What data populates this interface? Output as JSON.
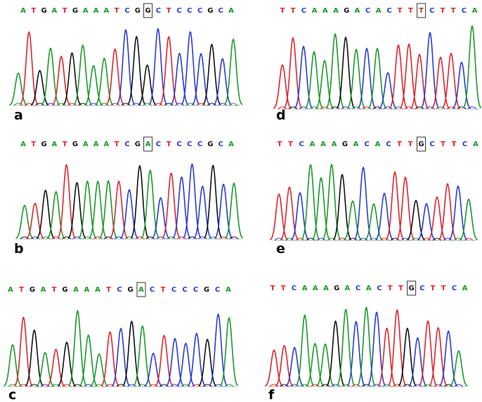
{
  "panels": [
    {
      "label": "a",
      "bases": [
        "A",
        "T",
        "G",
        "A",
        "T",
        "G",
        "A",
        "A",
        "A",
        "T",
        "C",
        "G",
        "G",
        "C",
        "T",
        "C",
        "C",
        "C",
        "G",
        "C",
        "A"
      ],
      "highlight": 12
    },
    {
      "label": "d",
      "bases": [
        "T",
        "T",
        "C",
        "A",
        "A",
        "A",
        "G",
        "A",
        "C",
        "A",
        "C",
        "T",
        "T",
        "T",
        "C",
        "T",
        "T",
        "C",
        "A"
      ],
      "highlight": 13
    },
    {
      "label": "b",
      "bases": [
        "A",
        "T",
        "G",
        "A",
        "T",
        "G",
        "A",
        "A",
        "A",
        "T",
        "C",
        "G",
        "A",
        "C",
        "T",
        "C",
        "C",
        "C",
        "G",
        "C",
        "A"
      ],
      "highlight": 12
    },
    {
      "label": "e",
      "bases": [
        "T",
        "T",
        "C",
        "A",
        "A",
        "A",
        "G",
        "A",
        "C",
        "A",
        "C",
        "T",
        "T",
        "G",
        "C",
        "T",
        "T",
        "C",
        "A"
      ],
      "highlight": 13
    },
    {
      "label": "c",
      "bases": [
        "A",
        "T",
        "G",
        "A",
        "T",
        "G",
        "A",
        "A",
        "A",
        "T",
        "C",
        "G",
        "A",
        "C",
        "T",
        "C",
        "C",
        "C",
        "G",
        "C",
        "A"
      ],
      "highlight": 12
    },
    {
      "label": "f",
      "bases": [
        "T",
        "T",
        "C",
        "A",
        "A",
        "A",
        "G",
        "A",
        "C",
        "A",
        "C",
        "T",
        "T",
        "G",
        "C",
        "T",
        "T",
        "C",
        "A"
      ],
      "highlight": 13
    }
  ]
}
